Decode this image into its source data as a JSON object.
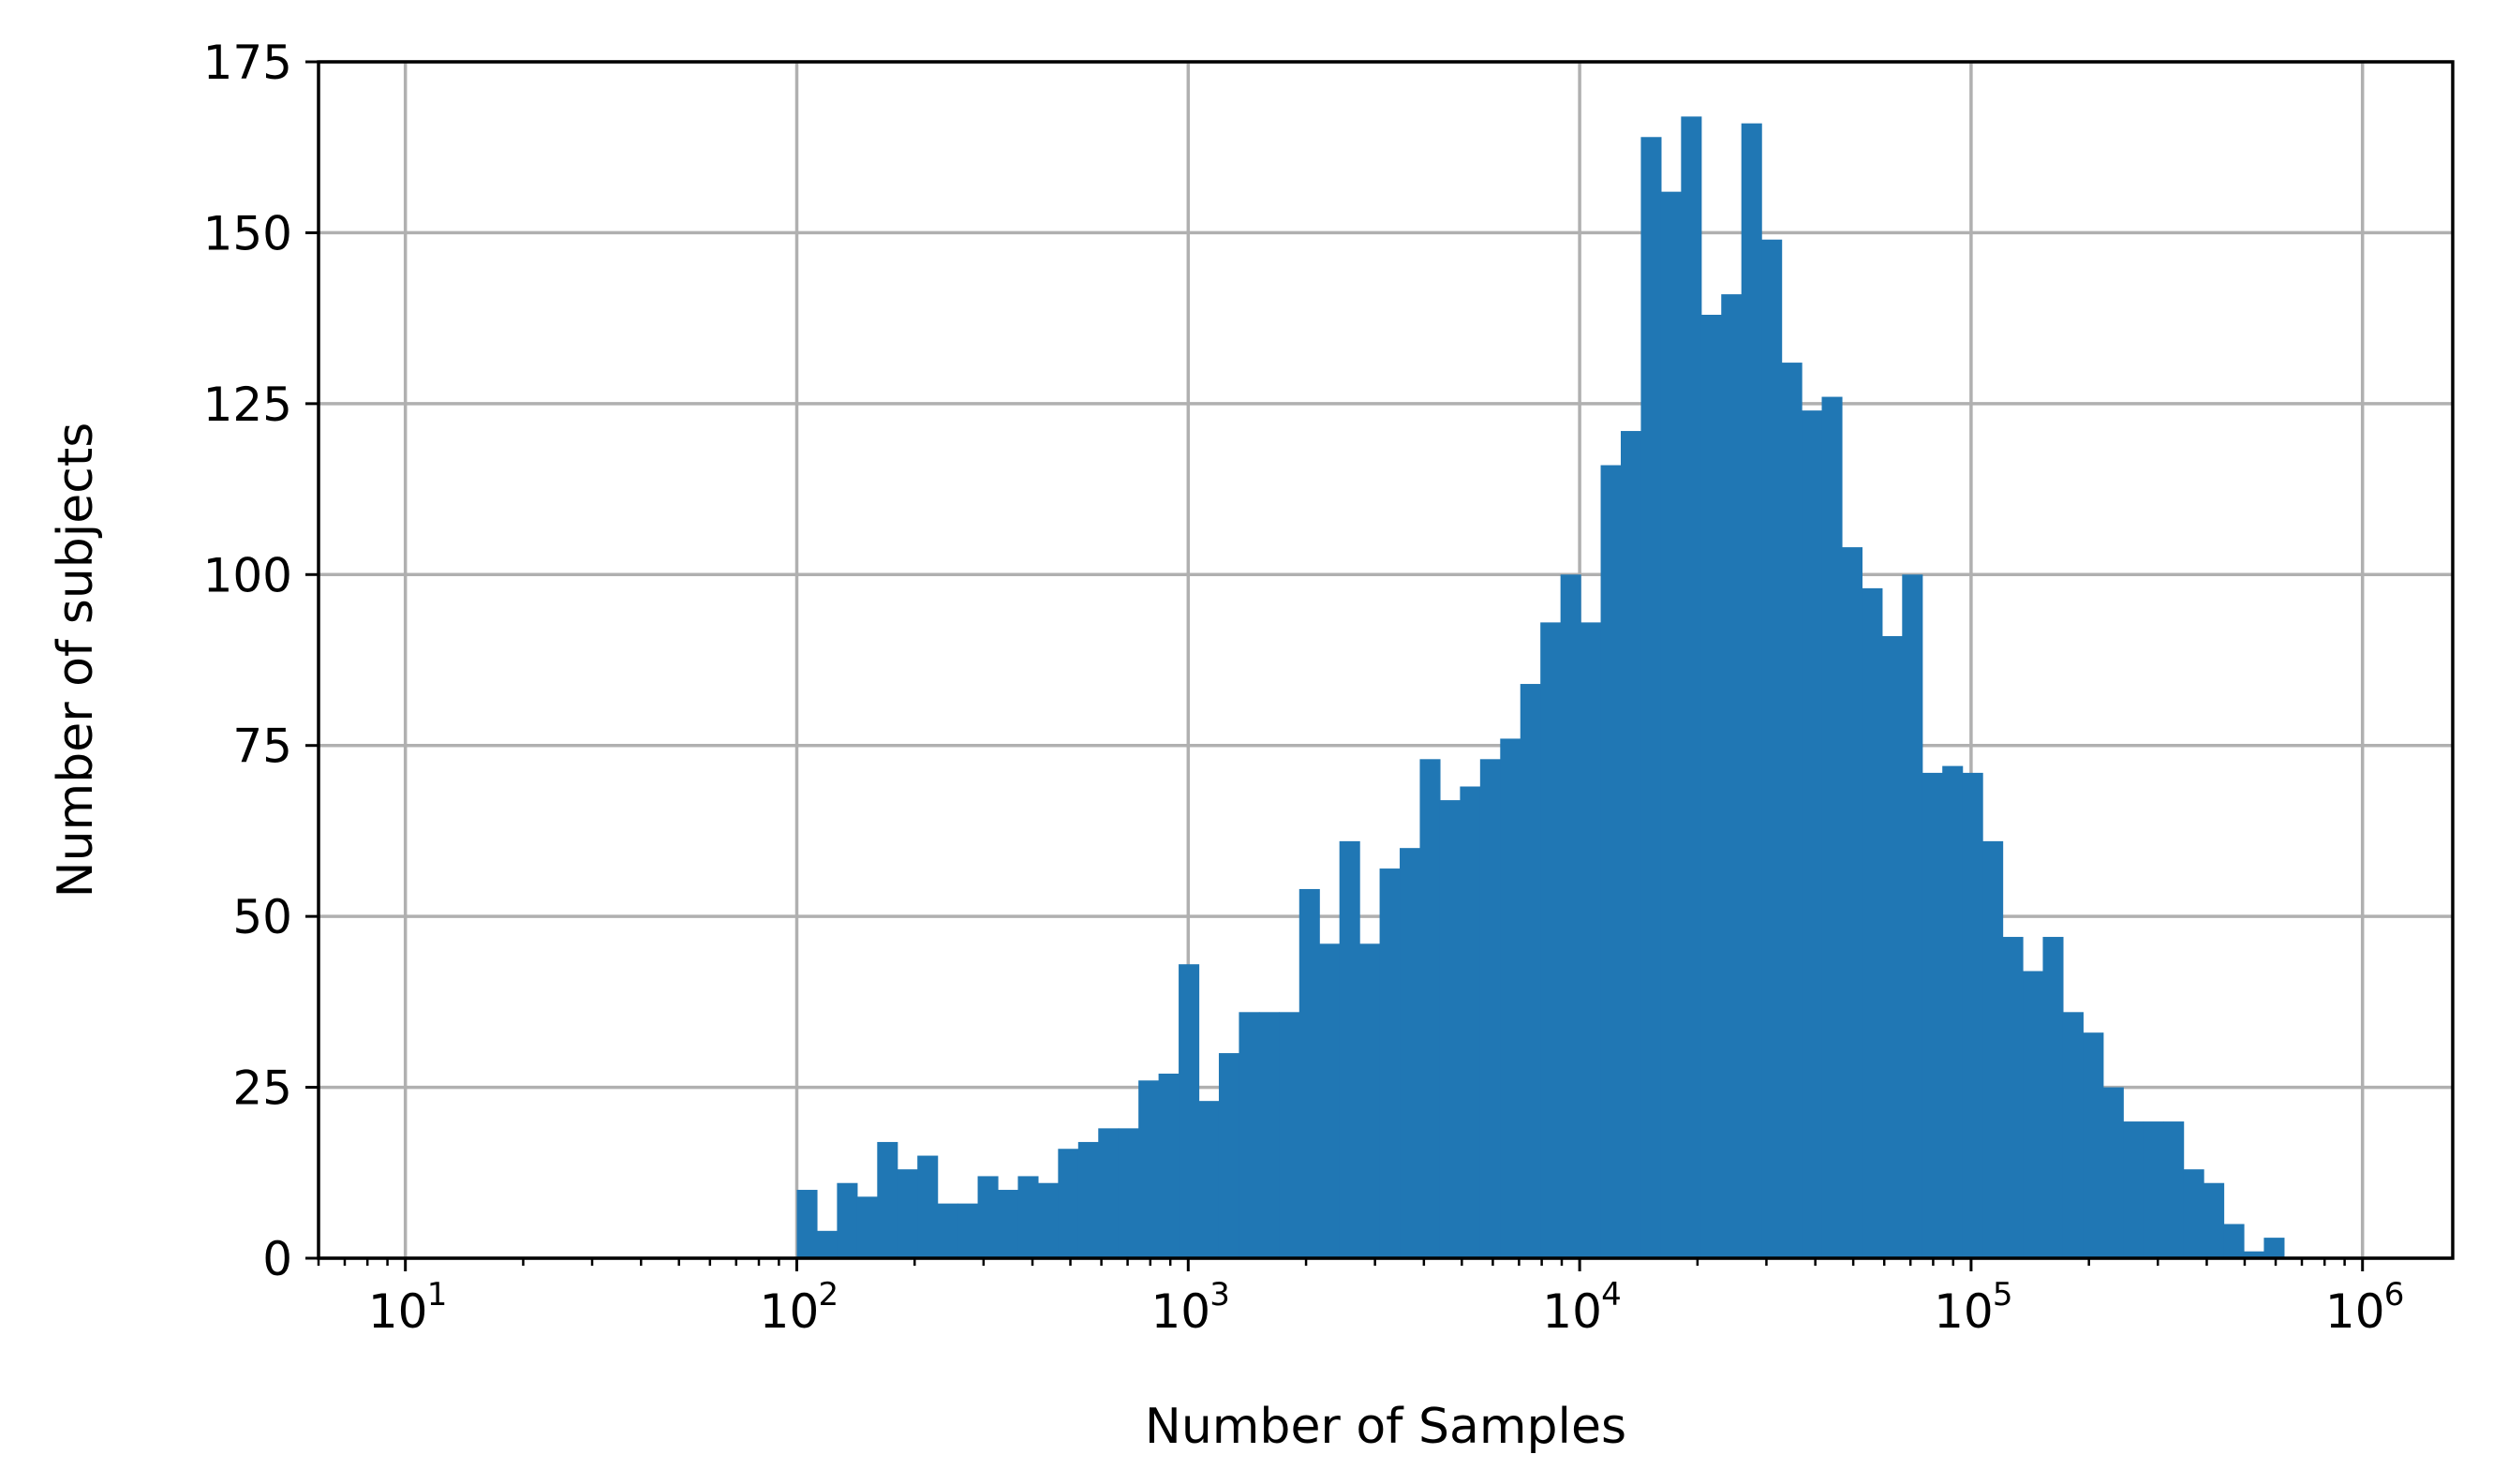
{
  "chart_data": {
    "type": "bar",
    "subtype": "histogram",
    "title": "",
    "xlabel": "Number of Samples",
    "ylabel": "Number of subjects",
    "x_scale": "log",
    "xlim": [
      6,
      1700000
    ],
    "ylim": [
      0,
      175
    ],
    "grid": true,
    "legend": "none",
    "bar_color": "#2077b4",
    "grid_color": "#b0b0b0",
    "x_ticks": [
      {
        "base": "10",
        "exp": "1",
        "value": 10
      },
      {
        "base": "10",
        "exp": "2",
        "value": 100
      },
      {
        "base": "10",
        "exp": "3",
        "value": 1000
      },
      {
        "base": "10",
        "exp": "4",
        "value": 10000
      },
      {
        "base": "10",
        "exp": "5",
        "value": 100000
      },
      {
        "base": "10",
        "exp": "6",
        "value": 1000000
      }
    ],
    "y_ticks": [
      "0",
      "25",
      "50",
      "75",
      "100",
      "125",
      "150",
      "175"
    ],
    "bin_start": 100,
    "bin_end": 630000,
    "counts": [
      10,
      4,
      11,
      9,
      17,
      13,
      15,
      8,
      8,
      12,
      10,
      12,
      11,
      16,
      17,
      19,
      19,
      26,
      27,
      43,
      23,
      30,
      36,
      36,
      36,
      54,
      46,
      61,
      46,
      57,
      60,
      73,
      67,
      69,
      73,
      76,
      84,
      93,
      100,
      93,
      116,
      121,
      164,
      156,
      167,
      138,
      141,
      166,
      149,
      131,
      124,
      126,
      104,
      98,
      91,
      100,
      71,
      72,
      71,
      61,
      47,
      42,
      47,
      36,
      33,
      25,
      20,
      20,
      20,
      13,
      11,
      5,
      1,
      3
    ]
  }
}
